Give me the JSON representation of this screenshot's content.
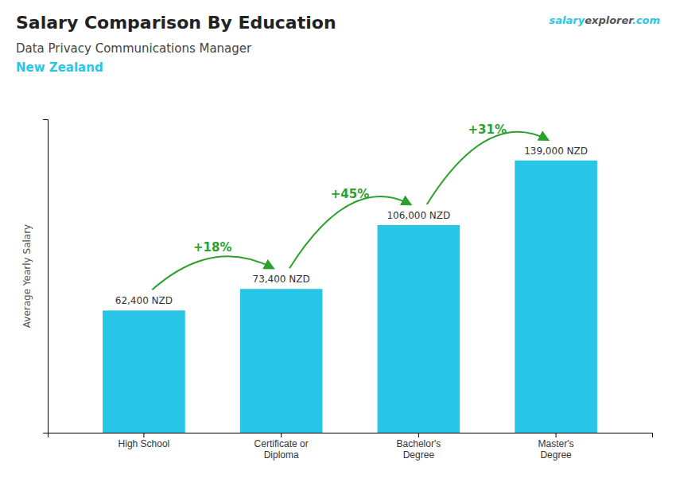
{
  "chart_data": {
    "type": "bar",
    "title": "Salary Comparison By Education",
    "subtitle": [
      "Data Privacy Communications Manager",
      "New Zealand"
    ],
    "watermark": [
      "salary",
      "explorer",
      ".com"
    ],
    "ylabel": "Average Yearly Salary",
    "categories": [
      "High School",
      "Certificate or\nDiploma",
      "Bachelor's\nDegree",
      "Master's\nDegree"
    ],
    "values": [
      62400,
      73400,
      106000,
      139000
    ],
    "value_labels": [
      "62,400 NZD",
      "73,400 NZD",
      "106,000 NZD",
      "139,000 NZD"
    ],
    "data_labels": true,
    "annotations": [
      "+18%",
      "+45%",
      "+31%"
    ],
    "color": "#29c5e6",
    "ylim": [
      0,
      160000
    ],
    "yticks": [],
    "tick_labels": "x",
    "grid": false
  }
}
